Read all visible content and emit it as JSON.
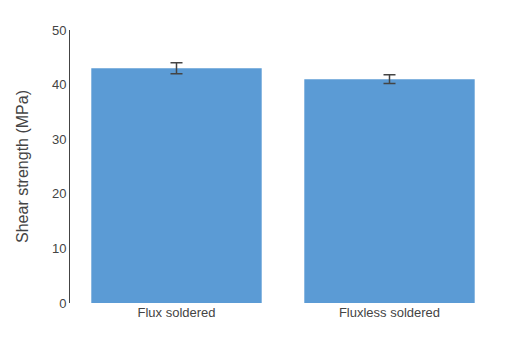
{
  "chart_data": {
    "type": "bar",
    "categories": [
      "Flux soldered",
      "Fluxless soldered"
    ],
    "values": [
      43.0,
      41.0
    ],
    "errors": [
      1.0,
      0.8
    ],
    "color": "#5B9BD5",
    "ylabel": "Shear strength (MPa)",
    "ylim": [
      0,
      50
    ],
    "yticks": [
      0,
      10,
      20,
      30,
      40,
      50
    ],
    "grid": false
  }
}
